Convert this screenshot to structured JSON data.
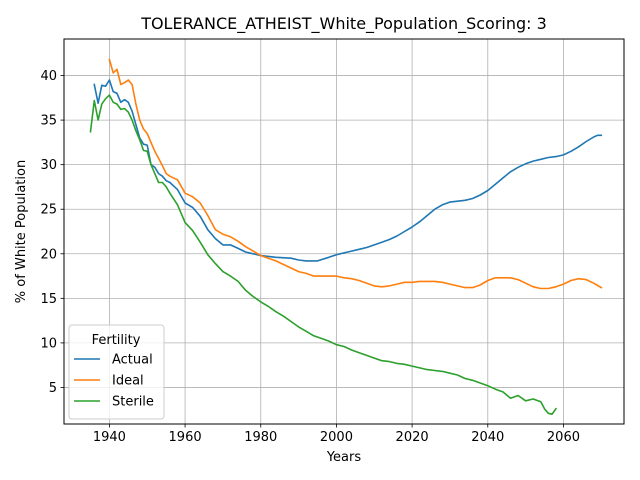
{
  "chart_data": {
    "type": "line",
    "title": "TOLERANCE_ATHEIST_White_Population_Scoring: 3",
    "xlabel": "Years",
    "ylabel": "% of White Population",
    "xlim": [
      1928,
      2076
    ],
    "ylim": [
      0.9,
      44.1
    ],
    "xticks": [
      1940,
      1960,
      1980,
      2000,
      2020,
      2040,
      2060
    ],
    "yticks": [
      5,
      10,
      15,
      20,
      25,
      30,
      35,
      40
    ],
    "grid": true,
    "legend": {
      "title": "Fertility",
      "placement": "lower-left"
    },
    "series": [
      {
        "name": "Actual",
        "color": "#1f77b4",
        "x": [
          1936,
          1937,
          1938,
          1939,
          1940,
          1941,
          1942,
          1943,
          1944,
          1945,
          1946,
          1947,
          1948,
          1949,
          1950,
          1951,
          1952,
          1953,
          1954,
          1955,
          1956,
          1958,
          1960,
          1962,
          1964,
          1966,
          1968,
          1970,
          1972,
          1974,
          1976,
          1978,
          1980,
          1984,
          1988,
          1990,
          1992,
          1995,
          1998,
          2000,
          2002,
          2004,
          2006,
          2008,
          2010,
          2012,
          2014,
          2016,
          2018,
          2020,
          2022,
          2024,
          2026,
          2028,
          2030,
          2032,
          2034,
          2036,
          2038,
          2040,
          2042,
          2044,
          2046,
          2048,
          2050,
          2052,
          2054,
          2056,
          2058,
          2060,
          2062,
          2064,
          2066,
          2068,
          2069,
          2070
        ],
        "y": [
          39.0,
          36.9,
          38.9,
          38.8,
          39.5,
          38.2,
          38.0,
          37.0,
          37.3,
          37.0,
          36.0,
          34.5,
          33.0,
          32.3,
          32.2,
          30.0,
          29.7,
          29.0,
          28.7,
          28.2,
          28.0,
          27.2,
          25.7,
          25.2,
          24.2,
          22.7,
          21.7,
          21.0,
          21.0,
          20.6,
          20.2,
          20.0,
          19.8,
          19.6,
          19.5,
          19.3,
          19.2,
          19.2,
          19.6,
          19.9,
          20.1,
          20.3,
          20.5,
          20.7,
          21.0,
          21.3,
          21.6,
          22.0,
          22.5,
          23.0,
          23.6,
          24.3,
          25.0,
          25.5,
          25.8,
          25.9,
          26.0,
          26.2,
          26.6,
          27.1,
          27.8,
          28.5,
          29.2,
          29.7,
          30.1,
          30.4,
          30.6,
          30.8,
          30.9,
          31.1,
          31.5,
          32.0,
          32.6,
          33.1,
          33.3,
          33.3
        ]
      },
      {
        "name": "Ideal",
        "color": "#ff7f0e",
        "x": [
          1940,
          1941,
          1942,
          1943,
          1944,
          1945,
          1946,
          1947,
          1948,
          1949,
          1950,
          1951,
          1952,
          1953,
          1954,
          1955,
          1956,
          1958,
          1960,
          1962,
          1964,
          1966,
          1968,
          1970,
          1972,
          1974,
          1976,
          1978,
          1980,
          1982,
          1984,
          1986,
          1988,
          1990,
          1992,
          1994,
          1996,
          1998,
          2000,
          2002,
          2004,
          2006,
          2008,
          2010,
          2012,
          2014,
          2016,
          2018,
          2020,
          2022,
          2024,
          2026,
          2028,
          2030,
          2032,
          2034,
          2036,
          2038,
          2040,
          2042,
          2044,
          2046,
          2048,
          2050,
          2052,
          2054,
          2056,
          2058,
          2060,
          2062,
          2064,
          2066,
          2068,
          2070
        ],
        "y": [
          41.8,
          40.3,
          40.7,
          39.0,
          39.2,
          39.5,
          39.0,
          36.8,
          35.0,
          34.0,
          33.5,
          32.5,
          31.5,
          30.7,
          29.9,
          29.0,
          28.7,
          28.3,
          26.8,
          26.4,
          25.7,
          24.3,
          22.7,
          22.2,
          21.9,
          21.4,
          20.8,
          20.3,
          19.8,
          19.5,
          19.2,
          18.8,
          18.4,
          18.0,
          17.8,
          17.5,
          17.5,
          17.5,
          17.5,
          17.3,
          17.2,
          17.0,
          16.7,
          16.4,
          16.3,
          16.4,
          16.6,
          16.8,
          16.8,
          16.9,
          16.9,
          16.9,
          16.8,
          16.6,
          16.4,
          16.2,
          16.2,
          16.5,
          17.0,
          17.3,
          17.3,
          17.3,
          17.1,
          16.7,
          16.3,
          16.1,
          16.1,
          16.3,
          16.6,
          17.0,
          17.2,
          17.1,
          16.7,
          16.2
        ]
      },
      {
        "name": "Sterile",
        "color": "#2ca02c",
        "x": [
          1935,
          1936,
          1937,
          1938,
          1939,
          1940,
          1941,
          1942,
          1943,
          1944,
          1945,
          1946,
          1947,
          1948,
          1949,
          1950,
          1951,
          1952,
          1953,
          1954,
          1955,
          1956,
          1958,
          1960,
          1962,
          1964,
          1966,
          1968,
          1970,
          1972,
          1974,
          1976,
          1978,
          1980,
          1982,
          1984,
          1986,
          1988,
          1990,
          1992,
          1994,
          1996,
          1998,
          2000,
          2002,
          2004,
          2006,
          2008,
          2010,
          2012,
          2014,
          2016,
          2018,
          2020,
          2022,
          2024,
          2026,
          2028,
          2030,
          2032,
          2034,
          2036,
          2038,
          2040,
          2042,
          2044,
          2046,
          2048,
          2050,
          2052,
          2054,
          2055,
          2056,
          2057,
          2058
        ],
        "y": [
          33.7,
          37.2,
          35.0,
          36.8,
          37.4,
          37.8,
          37.0,
          36.8,
          36.2,
          36.3,
          35.9,
          35.0,
          33.8,
          32.8,
          31.6,
          31.5,
          30.0,
          29.0,
          28.0,
          28.0,
          27.5,
          26.8,
          25.5,
          23.5,
          22.6,
          21.3,
          19.9,
          18.9,
          18.0,
          17.5,
          16.9,
          15.9,
          15.2,
          14.6,
          14.1,
          13.5,
          13.0,
          12.4,
          11.8,
          11.3,
          10.8,
          10.5,
          10.2,
          9.8,
          9.6,
          9.2,
          8.9,
          8.6,
          8.3,
          8.0,
          7.9,
          7.7,
          7.6,
          7.4,
          7.2,
          7.0,
          6.9,
          6.8,
          6.6,
          6.4,
          6.0,
          5.8,
          5.5,
          5.2,
          4.8,
          4.5,
          3.8,
          4.1,
          3.5,
          3.7,
          3.4,
          2.6,
          2.1,
          2.0,
          2.6
        ]
      }
    ]
  }
}
